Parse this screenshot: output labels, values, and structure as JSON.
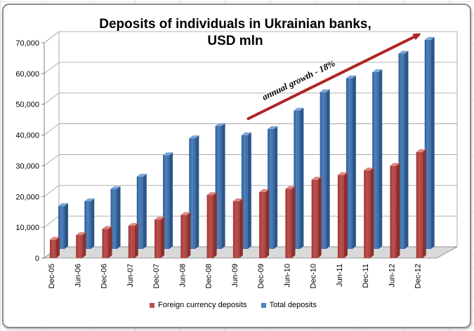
{
  "chart_data": {
    "type": "bar",
    "title": "Deposits of individuals in Ukrainian banks,",
    "subtitle": "USD mln",
    "annotation": "annual growth - 18%",
    "categories": [
      "Dec-05",
      "Jun-06",
      "Dec-06",
      "Jun-07",
      "Dec-07",
      "Jun-08",
      "Dec-08",
      "Jun-09",
      "Dec-09",
      "Jun-10",
      "Dec-10",
      "Jun-11",
      "Dec-11",
      "Jun-12",
      "Dec-12"
    ],
    "series": [
      {
        "name": "Foreign currency deposits",
        "color": "#c0504d",
        "values": [
          6000,
          7500,
          9500,
          10500,
          12500,
          14000,
          20500,
          18500,
          21500,
          22500,
          25500,
          27000,
          28500,
          30000,
          34500
        ]
      },
      {
        "name": "Total deposits",
        "color": "#4f81bd",
        "values": [
          14000,
          15500,
          19500,
          23500,
          30500,
          36000,
          40000,
          37000,
          39000,
          45000,
          51000,
          55500,
          57500,
          63500,
          68000
        ]
      }
    ],
    "y_ticks": [
      "0",
      "10,000",
      "20,000",
      "30,000",
      "40,000",
      "50,000",
      "60,000",
      "70,000"
    ],
    "ylim": [
      0,
      70000
    ],
    "grid": true,
    "legend": "bottom",
    "arrow_color": "#b22222"
  }
}
